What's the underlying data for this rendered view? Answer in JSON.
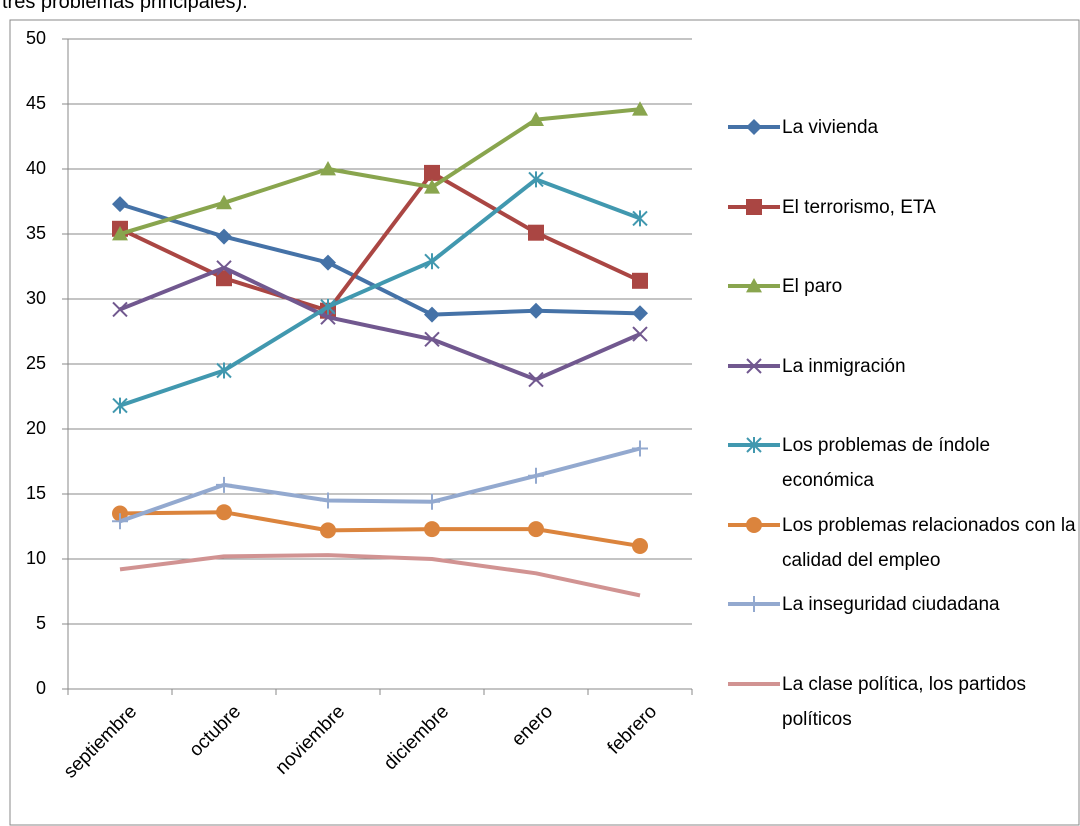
{
  "caption": "tres problemas principales).",
  "chart_data": {
    "type": "line",
    "categories": [
      "septiembre",
      "octubre",
      "noviembre",
      "diciembre",
      "enero",
      "febrero"
    ],
    "ylim": [
      0,
      50
    ],
    "yticks": [
      0,
      5,
      10,
      15,
      20,
      25,
      30,
      35,
      40,
      45,
      50
    ],
    "grid": true,
    "series": [
      {
        "name": "La vivienda",
        "color": "#4572a7",
        "marker": "diamond",
        "values": [
          37.3,
          34.8,
          32.8,
          28.8,
          29.1,
          28.9
        ]
      },
      {
        "name": "El terrorismo, ETA",
        "color": "#aa4643",
        "marker": "square",
        "values": [
          35.4,
          31.6,
          29.1,
          39.7,
          35.1,
          31.4
        ]
      },
      {
        "name": "El paro",
        "color": "#89a54e",
        "marker": "triangle",
        "values": [
          35.0,
          37.4,
          40.0,
          38.6,
          43.8,
          44.6
        ]
      },
      {
        "name": "La inmigración",
        "color": "#71588f",
        "marker": "x",
        "values": [
          29.2,
          32.4,
          28.6,
          26.9,
          23.8,
          27.3
        ]
      },
      {
        "name": "Los problemas de índole económica",
        "color": "#4198af",
        "marker": "star",
        "values": [
          21.8,
          24.5,
          29.4,
          32.9,
          39.2,
          36.2
        ]
      },
      {
        "name": "Los problemas relacionados con la calidad del empleo",
        "color": "#db843d",
        "marker": "circle",
        "values": [
          13.5,
          13.6,
          12.2,
          12.3,
          12.3,
          11.0
        ]
      },
      {
        "name": "La inseguridad ciudadana",
        "color": "#93a9cf",
        "marker": "plus",
        "values": [
          12.9,
          15.7,
          14.5,
          14.4,
          16.4,
          18.5
        ]
      },
      {
        "name": "La clase política, los partidos políticos",
        "color": "#d19392",
        "marker": "none",
        "values": [
          9.2,
          10.2,
          10.3,
          10.0,
          8.9,
          7.2
        ]
      }
    ]
  }
}
